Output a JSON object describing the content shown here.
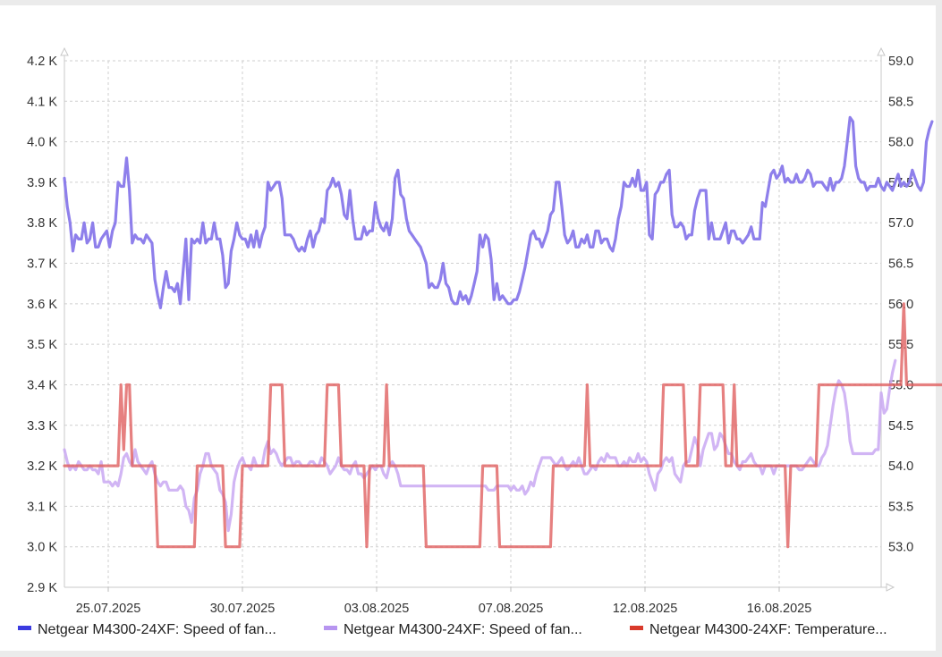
{
  "chart_data": {
    "type": "line",
    "title": "",
    "xlabel": "",
    "ylabel": "",
    "x_tick_labels": [
      "25.07.2025",
      "30.07.2025",
      "03.08.2025",
      "07.08.2025",
      "12.08.2025",
      "16.08.2025"
    ],
    "y_left": {
      "ylim": [
        2900,
        4200
      ],
      "tick_labels": [
        "2.9 K",
        "3.0 K",
        "3.1 K",
        "3.2 K",
        "3.3 K",
        "3.4 K",
        "3.5 K",
        "3.6 K",
        "3.7 K",
        "3.8 K",
        "3.9 K",
        "4.0 K",
        "4.1 K",
        "4.2 K"
      ]
    },
    "y_right": {
      "ylim": [
        52.5,
        59.0
      ],
      "tick_labels": [
        "53.0",
        "53.5",
        "54.0",
        "54.5",
        "55.0",
        "55.5",
        "56.0",
        "56.5",
        "57.0",
        "57.5",
        "58.0",
        "58.5",
        "59.0"
      ]
    },
    "x_range_samples": 290,
    "grid": true,
    "legend_position": "bottom",
    "series": [
      {
        "name": "Netgear M4300-24XF: Speed of fan...",
        "axis": "left",
        "color": "#8878ea",
        "values": [
          3910,
          3840,
          3800,
          3730,
          3770,
          3760,
          3760,
          3800,
          3750,
          3760,
          3800,
          3740,
          3740,
          3760,
          3770,
          3780,
          3740,
          3780,
          3800,
          3900,
          3890,
          3890,
          3960,
          3880,
          3750,
          3770,
          3760,
          3760,
          3750,
          3770,
          3760,
          3750,
          3660,
          3620,
          3590,
          3640,
          3680,
          3640,
          3640,
          3630,
          3650,
          3600,
          3680,
          3760,
          3610,
          3760,
          3750,
          3760,
          3750,
          3800,
          3750,
          3760,
          3760,
          3800,
          3760,
          3760,
          3720,
          3640,
          3650,
          3730,
          3760,
          3800,
          3770,
          3760,
          3760,
          3740,
          3770,
          3740,
          3780,
          3740,
          3770,
          3790,
          3900,
          3880,
          3890,
          3900,
          3900,
          3860,
          3770,
          3770,
          3770,
          3760,
          3740,
          3730,
          3740,
          3730,
          3760,
          3780,
          3740,
          3770,
          3780,
          3810,
          3800,
          3880,
          3890,
          3910,
          3890,
          3900,
          3870,
          3820,
          3810,
          3880,
          3810,
          3760,
          3760,
          3760,
          3790,
          3770,
          3780,
          3780,
          3850,
          3810,
          3790,
          3780,
          3800,
          3770,
          3810,
          3910,
          3930,
          3870,
          3860,
          3810,
          3780,
          3770,
          3760,
          3750,
          3740,
          3720,
          3700,
          3640,
          3650,
          3640,
          3640,
          3660,
          3700,
          3650,
          3640,
          3610,
          3600,
          3600,
          3630,
          3610,
          3620,
          3600,
          3620,
          3650,
          3680,
          3770,
          3740,
          3770,
          3760,
          3710,
          3610,
          3650,
          3610,
          3620,
          3610,
          3600,
          3600,
          3610,
          3610,
          3630,
          3660,
          3690,
          3730,
          3770,
          3780,
          3760,
          3760,
          3740,
          3760,
          3780,
          3820,
          3830,
          3900,
          3900,
          3840,
          3770,
          3750,
          3760,
          3780,
          3740,
          3740,
          3760,
          3750,
          3770,
          3740,
          3740,
          3780,
          3780,
          3750,
          3760,
          3760,
          3740,
          3730,
          3760,
          3810,
          3840,
          3900,
          3890,
          3890,
          3910,
          3890,
          3930,
          3880,
          3880,
          3900,
          3770,
          3760,
          3870,
          3880,
          3900,
          3900,
          3920,
          3930,
          3820,
          3790,
          3790,
          3800,
          3790,
          3760,
          3770,
          3770,
          3830,
          3860,
          3880,
          3880,
          3880,
          3760,
          3800,
          3760,
          3760,
          3760,
          3780,
          3800,
          3750,
          3780,
          3780,
          3760,
          3760,
          3750,
          3760,
          3770,
          3790,
          3760,
          3760,
          3760,
          3850,
          3840,
          3880,
          3920,
          3930,
          3910,
          3920,
          3940,
          3900,
          3910,
          3900,
          3900,
          3920,
          3900,
          3900,
          3910,
          3930,
          3920,
          3890,
          3900,
          3900,
          3900,
          3890,
          3880,
          3910,
          3880,
          3900,
          3900,
          3910,
          3940,
          4000,
          4060,
          4050,
          3940,
          3910,
          3900,
          3900,
          3880,
          3890,
          3890,
          3890,
          3910,
          3890,
          3880,
          3900,
          3890,
          3880,
          3900,
          3920,
          3890,
          3900,
          3890,
          3900,
          3930,
          3910,
          3890,
          3880,
          3900,
          4000,
          4030,
          4050
        ]
      },
      {
        "name": "Netgear M4300-24XF: Speed of fan...",
        "axis": "left",
        "color": "#c9a8f2",
        "values": [
          3240,
          3210,
          3190,
          3200,
          3190,
          3210,
          3200,
          3190,
          3190,
          3200,
          3190,
          3190,
          3180,
          3210,
          3160,
          3160,
          3160,
          3150,
          3160,
          3150,
          3180,
          3220,
          3230,
          3210,
          3200,
          3240,
          3210,
          3200,
          3190,
          3180,
          3200,
          3210,
          3180,
          3160,
          3150,
          3160,
          3160,
          3140,
          3140,
          3140,
          3140,
          3150,
          3140,
          3100,
          3090,
          3060,
          3120,
          3140,
          3180,
          3200,
          3230,
          3230,
          3200,
          3190,
          3180,
          3140,
          3130,
          3110,
          3040,
          3080,
          3160,
          3190,
          3210,
          3220,
          3200,
          3200,
          3190,
          3220,
          3200,
          3200,
          3200,
          3240,
          3260,
          3230,
          3240,
          3230,
          3210,
          3200,
          3210,
          3220,
          3220,
          3200,
          3210,
          3210,
          3200,
          3200,
          3200,
          3210,
          3210,
          3200,
          3200,
          3220,
          3210,
          3200,
          3180,
          3190,
          3200,
          3220,
          3200,
          3190,
          3190,
          3180,
          3200,
          3210,
          3180,
          3180,
          3170,
          3180,
          3190,
          3200,
          3190,
          3200,
          3200,
          3180,
          3170,
          3200,
          3210,
          3200,
          3180,
          3150,
          3150,
          3150,
          3150,
          3150,
          3150,
          3150,
          3150,
          3150,
          3150,
          3150,
          3150,
          3150,
          3150,
          3150,
          3150,
          3150,
          3150,
          3150,
          3150,
          3150,
          3150,
          3150,
          3150,
          3150,
          3150,
          3150,
          3150,
          3150,
          3150,
          3150,
          3140,
          3140,
          3140,
          3150,
          3150,
          3150,
          3150,
          3150,
          3140,
          3150,
          3140,
          3140,
          3150,
          3130,
          3140,
          3160,
          3150,
          3180,
          3200,
          3220,
          3220,
          3220,
          3220,
          3210,
          3200,
          3210,
          3220,
          3200,
          3190,
          3200,
          3210,
          3200,
          3220,
          3200,
          3180,
          3180,
          3190,
          3200,
          3190,
          3210,
          3220,
          3210,
          3230,
          3220,
          3220,
          3220,
          3200,
          3200,
          3210,
          3200,
          3220,
          3210,
          3210,
          3230,
          3210,
          3220,
          3210,
          3180,
          3160,
          3140,
          3180,
          3190,
          3210,
          3220,
          3210,
          3220,
          3180,
          3170,
          3160,
          3200,
          3210,
          3210,
          3240,
          3270,
          3250,
          3200,
          3240,
          3260,
          3280,
          3280,
          3240,
          3250,
          3280,
          3270,
          3250,
          3230,
          3230,
          3210,
          3200,
          3190,
          3210,
          3210,
          3220,
          3230,
          3210,
          3200,
          3200,
          3180,
          3200,
          3200,
          3200,
          3180,
          3200,
          3200,
          3200,
          3200,
          3200,
          3200,
          3200,
          3200,
          3190,
          3190,
          3200,
          3210,
          3220,
          3210,
          3200,
          3200,
          3220,
          3230,
          3250,
          3300,
          3350,
          3390,
          3410,
          3400,
          3380,
          3330,
          3260,
          3230,
          3230,
          3230,
          3230,
          3230,
          3230,
          3230,
          3230,
          3240,
          3240,
          3380,
          3330,
          3340,
          3390,
          3430,
          3460
        ]
      },
      {
        "name": "Netgear M4300-24XF: Temperature...",
        "axis": "right",
        "color": "#e06060",
        "values": [
          54,
          54,
          54,
          54,
          54,
          54,
          54,
          54,
          54,
          54,
          54,
          54,
          54,
          54,
          54,
          54,
          54,
          54,
          54,
          54,
          55,
          54.2,
          55,
          55,
          54,
          54,
          54,
          54,
          54,
          54,
          54,
          54,
          54,
          53,
          53,
          53,
          53,
          53,
          53,
          53,
          53,
          53,
          53,
          53,
          53,
          53,
          53,
          54,
          54,
          54,
          54,
          54,
          54,
          54,
          54,
          54,
          54,
          53,
          53,
          53,
          53,
          53,
          53,
          54,
          54,
          54,
          54,
          54,
          54,
          54,
          54,
          54,
          54,
          55,
          55,
          55,
          55,
          55,
          54,
          54,
          54,
          54,
          54,
          54,
          54,
          54,
          54,
          54,
          54,
          54,
          54,
          54,
          54,
          55,
          55,
          55,
          55,
          55,
          54,
          54,
          54,
          54,
          54,
          54,
          54,
          54,
          54,
          53,
          54,
          54,
          54,
          54,
          54,
          54,
          55,
          54,
          54,
          54,
          54,
          54,
          54,
          54,
          54,
          54,
          54,
          54,
          54,
          54,
          53,
          53,
          53,
          53,
          53,
          53,
          53,
          53,
          53,
          53,
          53,
          53,
          53,
          53,
          53,
          53,
          53,
          53,
          53,
          53,
          54,
          54,
          54,
          54,
          54,
          54,
          53,
          53,
          53,
          53,
          53,
          53,
          53,
          53,
          53,
          53,
          53,
          53,
          53,
          53,
          53,
          53,
          53,
          53,
          53,
          54,
          54,
          54,
          54,
          54,
          54,
          54,
          54,
          54,
          54,
          54,
          54,
          55,
          54,
          54,
          54,
          54,
          54,
          54,
          54,
          54,
          54,
          54,
          54,
          54,
          54,
          54,
          54,
          54,
          54,
          54,
          54,
          54,
          54,
          54,
          54,
          54,
          54,
          54,
          55,
          55,
          55,
          55,
          55,
          55,
          55,
          55,
          54,
          54,
          54,
          54,
          54,
          55,
          55,
          55,
          55,
          55,
          55,
          55,
          55,
          55,
          54,
          54,
          54,
          55,
          54,
          54,
          54,
          54,
          54,
          54,
          54,
          54,
          54,
          54,
          54,
          54,
          54,
          54,
          54,
          54,
          54,
          54,
          53,
          54,
          54,
          54,
          54,
          54,
          54,
          54,
          54,
          54,
          54,
          55,
          55,
          55,
          55,
          55,
          55,
          55,
          55,
          55,
          55,
          55,
          55,
          55,
          55,
          55,
          55,
          55,
          55,
          55,
          55,
          55,
          55,
          55,
          55,
          55,
          55,
          55,
          55,
          55,
          55,
          56,
          55,
          55,
          55,
          55,
          55,
          55,
          55,
          55,
          55,
          55,
          55,
          55,
          55,
          55,
          55,
          55,
          55,
          55,
          55,
          55,
          55,
          55,
          55,
          55
        ]
      }
    ]
  }
}
